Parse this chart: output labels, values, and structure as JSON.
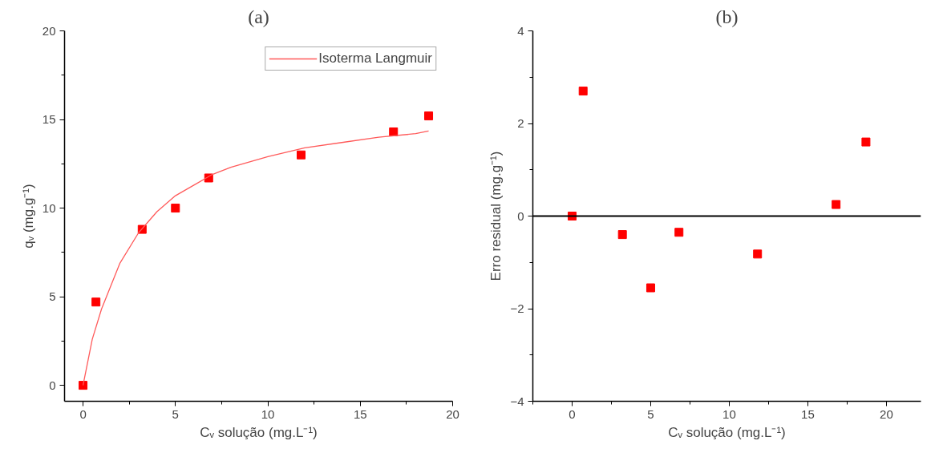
{
  "chart_data": [
    {
      "type": "scatter",
      "title": "(a)",
      "xlabel": "Cᵥ solução (mg.L⁻¹)",
      "ylabel": "qᵥ (mg.g⁻¹)",
      "xlim": [
        -1,
        20
      ],
      "ylim": [
        -0.9,
        20
      ],
      "xticks": [
        0,
        5,
        10,
        15,
        20
      ],
      "yticks": [
        0,
        5,
        10,
        15,
        20
      ],
      "grid": false,
      "legend": "top right",
      "series": [
        {
          "marker": "square",
          "color": "#ff0000",
          "x": [
            0,
            0.7,
            3.2,
            5,
            6.8,
            11.8,
            16.8,
            18.7
          ],
          "values": [
            0,
            4.7,
            8.8,
            10.0,
            11.7,
            13.0,
            14.3,
            15.2
          ]
        },
        {
          "type": "line",
          "name": "Isoterma Langmuir",
          "color": "#ff5a5a",
          "line_style": "solid",
          "x": [
            0,
            0.5,
            1,
            2,
            3,
            4,
            5,
            6,
            7,
            8,
            10,
            12,
            14,
            16,
            18,
            18.7
          ],
          "values": [
            0,
            2.6,
            4.3,
            6.9,
            8.6,
            9.8,
            10.7,
            11.3,
            11.9,
            12.3,
            12.9,
            13.4,
            13.7,
            14.0,
            14.2,
            14.35
          ]
        }
      ]
    },
    {
      "type": "scatter",
      "title": "(b)",
      "xlabel": "Cᵥ solução (mg.L⁻¹)",
      "ylabel": "Erro residual (mg.g⁻¹)",
      "xlim": [
        -2.5,
        22.2
      ],
      "ylim": [
        -4,
        4
      ],
      "xticks": [
        0,
        5,
        10,
        15,
        20
      ],
      "yticks": [
        -4,
        -2,
        0,
        2,
        4
      ],
      "grid": false,
      "marker": "square",
      "series": [
        {
          "color": "#ff0000",
          "x": [
            0,
            0.7,
            3.2,
            5,
            6.8,
            11.8,
            16.8,
            18.7
          ],
          "values": [
            0,
            2.7,
            -0.4,
            -1.55,
            -0.35,
            -0.82,
            0.25,
            1.6
          ]
        }
      ],
      "ref_lines": [
        {
          "axis": "y",
          "value": 0,
          "color": "#000000"
        }
      ]
    }
  ]
}
